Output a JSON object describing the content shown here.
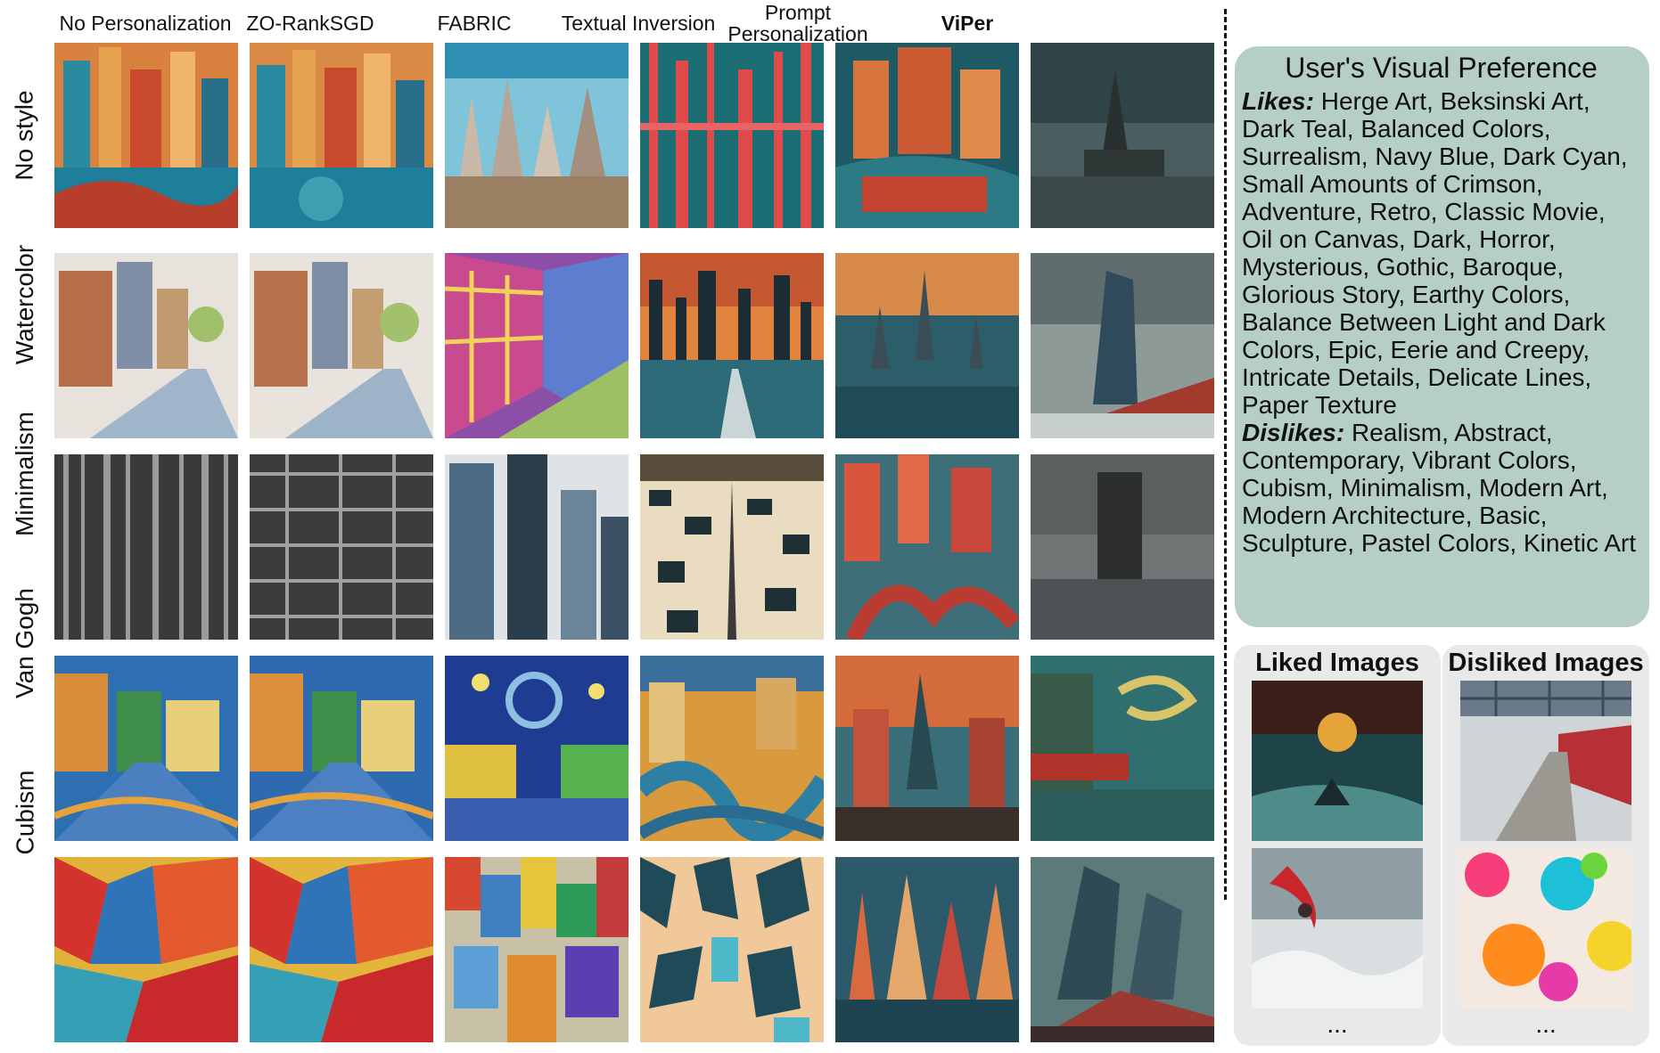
{
  "columns": [
    {
      "label": "No Personalization"
    },
    {
      "label": "ZO-RankSGD"
    },
    {
      "label": "FABRIC"
    },
    {
      "label": "Textual Inversion"
    },
    {
      "label": "Prompt Personalization"
    },
    {
      "label": "ViPer"
    }
  ],
  "rows": [
    {
      "label": "No style"
    },
    {
      "label": "Watercolor"
    },
    {
      "label": "Minimalism"
    },
    {
      "label": "Van Gogh"
    },
    {
      "label": "Cubism"
    }
  ],
  "preference": {
    "title": "User's Visual Preference",
    "likes_label": "Likes:",
    "likes_text": "Herge Art, Beksinski Art, Dark Teal, Balanced Colors, Surrealism, Navy Blue, Dark Cyan, Small Amounts of Crimson, Adventure, Retro, Classic Movie, Oil on Canvas, Dark, Horror, Mysterious, Gothic, Baroque, Glorious Story, Earthy Colors, Balance Between Light and Dark Colors, Epic, Eerie and Creepy, Intricate Details, Delicate Lines, Paper Texture",
    "dislikes_label": "Dislikes:",
    "dislikes_text": "Realism, Abstract, Contemporary, Vibrant Colors, Cubism, Minimalism, Modern Art, Modern Architecture, Basic, Sculpture, Pastel Colors, Kinetic Art"
  },
  "liked_panel": {
    "title": "Liked Images",
    "ellipsis": "..."
  },
  "disliked_panel": {
    "title": "Disliked Images",
    "ellipsis": "..."
  }
}
